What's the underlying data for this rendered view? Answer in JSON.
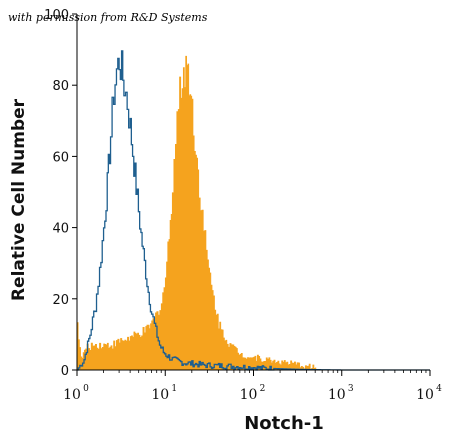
{
  "credit": "with permission from R&D Systems",
  "chart_data": {
    "type": "area",
    "title": "",
    "xlabel": "Notch-1",
    "ylabel": "Relative Cell Number",
    "xscale": "log",
    "xlim": [
      1,
      10000
    ],
    "ylim": [
      0,
      100
    ],
    "y_ticks": [
      "0",
      "20",
      "40",
      "60",
      "80",
      "100"
    ],
    "x_ticks": [
      {
        "base": "10",
        "exp": "0"
      },
      {
        "base": "10",
        "exp": "1"
      },
      {
        "base": "10",
        "exp": "2"
      },
      {
        "base": "10",
        "exp": "3"
      },
      {
        "base": "10",
        "exp": "4"
      }
    ],
    "grid": false,
    "series": [
      {
        "style": "outline",
        "color": "#1f5f8f",
        "x": [
          1.0,
          1.2,
          1.4,
          1.6,
          1.8,
          2.0,
          2.2,
          2.4,
          2.6,
          2.8,
          3.0,
          3.2,
          3.4,
          3.7,
          4.0,
          4.4,
          4.8,
          5.3,
          5.8,
          6.4,
          7.0,
          7.8,
          8.6,
          9.5,
          10.5,
          12,
          14,
          16,
          20,
          25,
          30,
          40,
          50,
          60,
          80,
          100,
          130,
          170,
          230,
          300,
          500,
          1000,
          10000
        ],
        "y": [
          0,
          3,
          10,
          18,
          28,
          40,
          52,
          66,
          78,
          84,
          87,
          84,
          80,
          75,
          68,
          58,
          48,
          38,
          30,
          22,
          16,
          11,
          7,
          5,
          4,
          3,
          2.5,
          2,
          1.8,
          1.5,
          1.3,
          1.2,
          1.1,
          1.0,
          0.8,
          0.7,
          0.5,
          0.4,
          0.3,
          0.2,
          0.1,
          0,
          0
        ]
      },
      {
        "style": "filled",
        "color": "#f5a31e",
        "x": [
          1.0,
          1.1,
          1.25,
          1.5,
          2.0,
          2.5,
          3.0,
          4.0,
          5.0,
          6.0,
          7.0,
          8.0,
          9.0,
          10,
          11,
          12,
          13,
          14,
          15,
          16,
          17,
          18,
          19,
          20,
          22,
          24,
          27,
          30,
          35,
          40,
          50,
          60,
          70,
          80,
          100,
          130,
          170,
          230,
          300,
          400,
          500,
          510,
          10000
        ],
        "y": [
          13,
          3,
          6,
          7,
          7,
          7,
          8,
          9,
          10,
          11,
          13,
          16,
          19,
          26,
          38,
          52,
          66,
          75,
          80,
          84,
          86,
          84,
          80,
          73,
          62,
          52,
          40,
          30,
          20,
          13,
          8,
          6,
          4.5,
          4,
          3.5,
          3,
          2.5,
          2,
          1.5,
          1,
          0.8,
          0,
          0
        ]
      }
    ]
  }
}
